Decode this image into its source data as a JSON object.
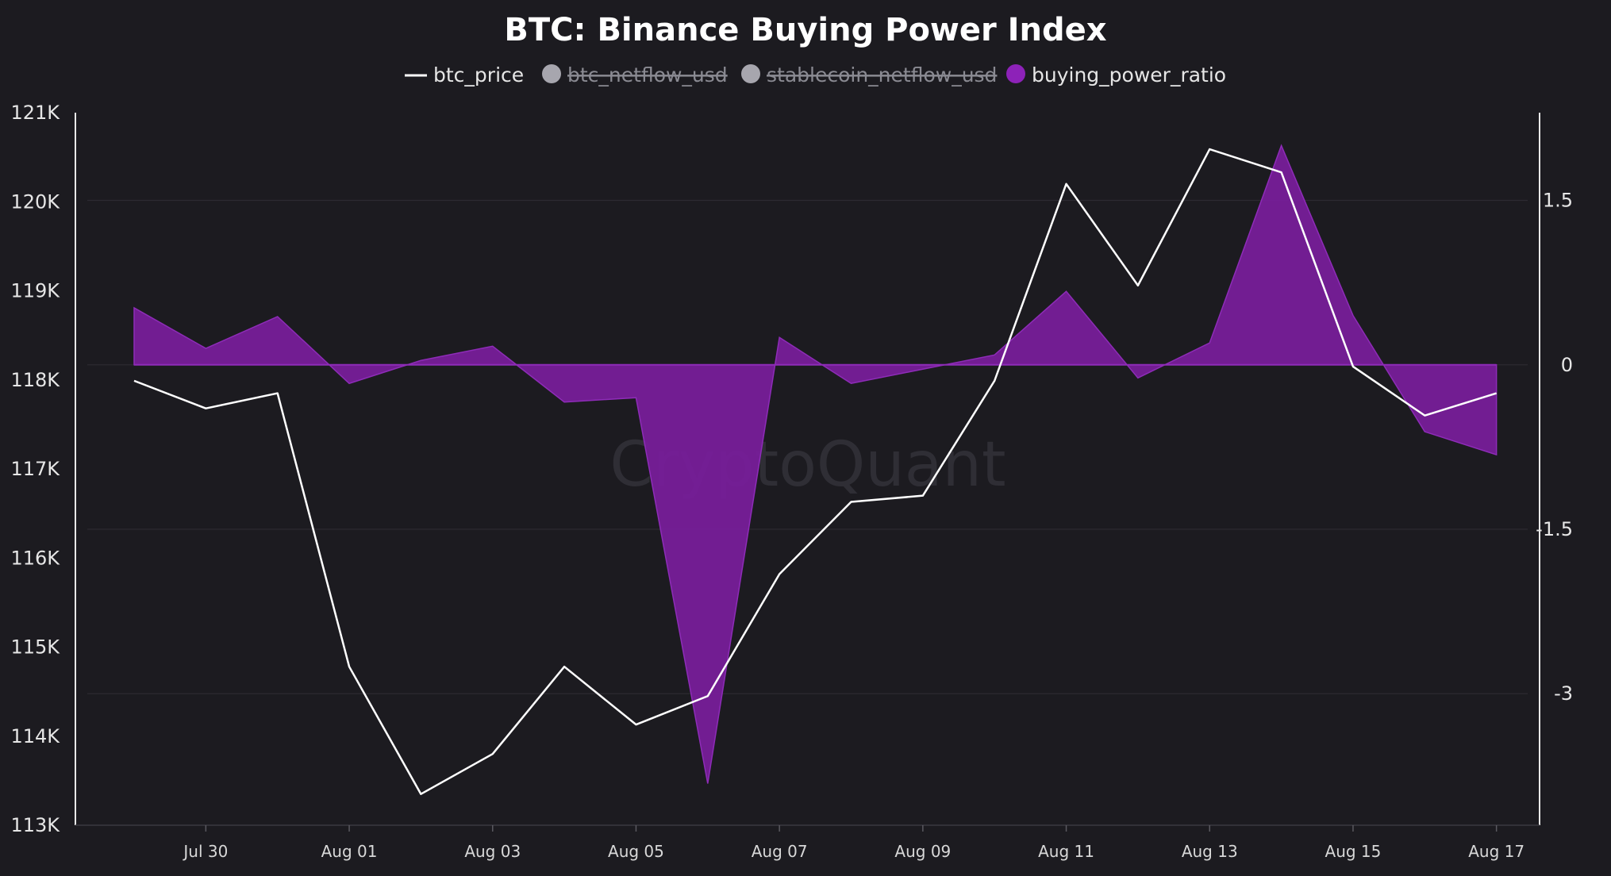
{
  "chart_data": {
    "type": "line",
    "title": "BTC: Binance Buying Power Index",
    "watermark": "CryptoQuant",
    "legend": {
      "position": "top-center",
      "entries": [
        {
          "name": "btc_price",
          "symbol": "line",
          "color": "#ffffff",
          "enabled": true
        },
        {
          "name": "btc_netflow_usd",
          "symbol": "dot",
          "color": "#a7a6ae",
          "enabled": false
        },
        {
          "name": "stablecoin_netflow_usd",
          "symbol": "dot",
          "color": "#a7a6ae",
          "enabled": false
        },
        {
          "name": "buying_power_ratio",
          "symbol": "dot",
          "color": "#8d22b8",
          "enabled": true
        }
      ]
    },
    "x_ticks": [
      {
        "day": 1,
        "label": "Jul 30"
      },
      {
        "day": 3,
        "label": "Aug 01"
      },
      {
        "day": 5,
        "label": "Aug 03"
      },
      {
        "day": 7,
        "label": "Aug 05"
      },
      {
        "day": 9,
        "label": "Aug 07"
      },
      {
        "day": 11,
        "label": "Aug 09"
      },
      {
        "day": 13,
        "label": "Aug 11"
      },
      {
        "day": 15,
        "label": "Aug 13"
      },
      {
        "day": 17,
        "label": "Aug 15"
      },
      {
        "day": 19,
        "label": "Aug 17"
      }
    ],
    "x": [
      "Jul 29",
      "Jul 30",
      "Jul 31",
      "Aug 01",
      "Aug 02",
      "Aug 03",
      "Aug 04",
      "Aug 05",
      "Aug 06",
      "Aug 07",
      "Aug 08",
      "Aug 09",
      "Aug 10",
      "Aug 11",
      "Aug 12",
      "Aug 13",
      "Aug 14",
      "Aug 15",
      "Aug 16",
      "Aug 17"
    ],
    "y_left": {
      "ylim": [
        113000,
        121000
      ],
      "ticks": [
        113000,
        114000,
        115000,
        116000,
        117000,
        118000,
        119000,
        120000,
        121000
      ],
      "tick_labels": [
        "113K",
        "114K",
        "115K",
        "116K",
        "117K",
        "118K",
        "119K",
        "120K",
        "121K"
      ]
    },
    "y_right": {
      "ylim": [
        -4.2,
        2.3
      ],
      "ticks": [
        1.5,
        0,
        -1.5,
        -3
      ],
      "tick_labels": [
        "1.5",
        "0",
        "-1.5",
        "-3"
      ]
    },
    "grid": true,
    "series": [
      {
        "name": "btc_price",
        "type": "line",
        "axis": "left",
        "color": "#ffffff",
        "values": [
          117990,
          117680,
          117850,
          114780,
          113350,
          113800,
          114780,
          114130,
          114450,
          115820,
          116630,
          116700,
          117990,
          120200,
          119060,
          120590,
          120330,
          118150,
          117600,
          117850
        ]
      },
      {
        "name": "buying_power_ratio",
        "type": "area",
        "axis": "right",
        "color": "#7a1d9c",
        "values": [
          0.52,
          0.15,
          0.44,
          -0.17,
          0.04,
          0.17,
          -0.34,
          -0.3,
          -3.82,
          0.25,
          -0.17,
          -0.04,
          0.09,
          0.67,
          -0.12,
          0.2,
          2.0,
          0.45,
          -0.61,
          -0.82
        ]
      }
    ]
  }
}
